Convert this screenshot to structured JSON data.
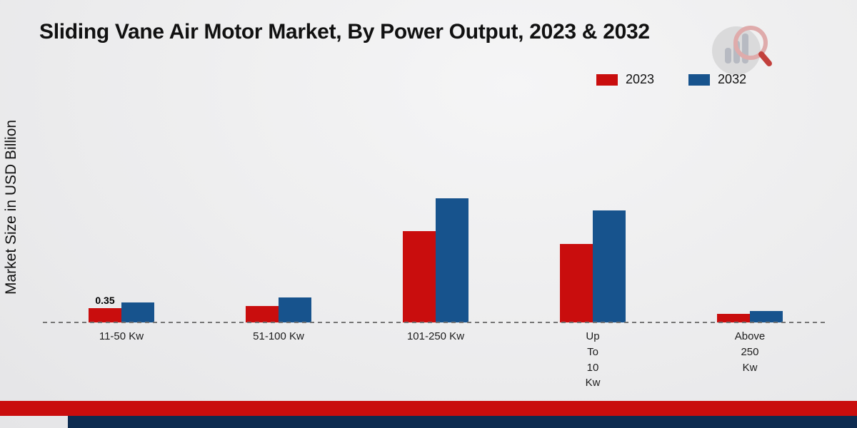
{
  "title": "Sliding Vane Air Motor Market, By Power Output, 2023 & 2032",
  "ylabel": "Market Size in USD Billion",
  "legend": [
    {
      "label": "2023",
      "color": "#c90d0d"
    },
    {
      "label": "2032",
      "color": "#17538d"
    }
  ],
  "colors": {
    "bar_red": "#c90d0d",
    "bar_blue": "#17538d",
    "footer_red": "#c90d0d",
    "footer_navy": "#0d2b50",
    "axis_dash": "#767676"
  },
  "chart_data": {
    "type": "bar",
    "title": "Sliding Vane Air Motor Market, By Power Output, 2023 & 2032",
    "xlabel": "",
    "ylabel": "Market Size in USD Billion",
    "categories": [
      "11-50 Kw",
      "51-100 Kw",
      "101-250 Kw",
      "Up To 10 Kw",
      "Above 250 Kw"
    ],
    "categories_display": [
      [
        "11-50 Kw"
      ],
      [
        "51-100 Kw"
      ],
      [
        "101-250 Kw"
      ],
      [
        "Up",
        "To",
        "10",
        "Kw"
      ],
      [
        "Above",
        "250",
        "Kw"
      ]
    ],
    "series": [
      {
        "name": "2023",
        "color": "#c90d0d",
        "values": [
          0.35,
          0.4,
          2.2,
          1.9,
          0.2
        ]
      },
      {
        "name": "2032",
        "color": "#17538d",
        "values": [
          0.48,
          0.6,
          3.0,
          2.7,
          0.28
        ]
      }
    ],
    "annotations": [
      {
        "series": "2023",
        "category": "11-50 Kw",
        "text": "0.35"
      }
    ],
    "ylim": [
      0,
      6
    ],
    "grid": false,
    "legend_position": "top-right",
    "baseline_style": "dashed"
  }
}
